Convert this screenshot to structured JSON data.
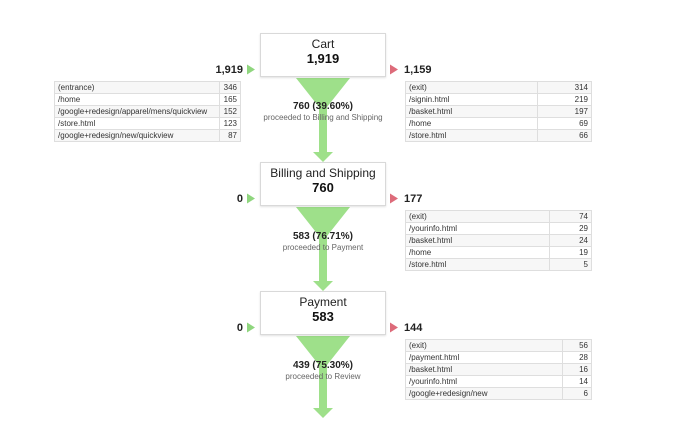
{
  "chart_data": {
    "type": "funnel",
    "steps": [
      {
        "name": "Cart",
        "count": "1,919",
        "entrances": "1,919",
        "exits": "1,159",
        "proceed_value": "760 (39.60%)",
        "proceed_label": "proceeded to Billing and Shipping",
        "entrance_rows": [
          {
            "page": "(entrance)",
            "value": "346"
          },
          {
            "page": "/home",
            "value": "165"
          },
          {
            "page": "/google+redesign/apparel/mens/quickview",
            "value": "152"
          },
          {
            "page": "/store.html",
            "value": "123"
          },
          {
            "page": "/google+redesign/new/quickview",
            "value": "87"
          }
        ],
        "exit_rows": [
          {
            "page": "(exit)",
            "value": "314"
          },
          {
            "page": "/signin.html",
            "value": "219"
          },
          {
            "page": "/basket.html",
            "value": "197"
          },
          {
            "page": "/home",
            "value": "69"
          },
          {
            "page": "/store.html",
            "value": "66"
          }
        ]
      },
      {
        "name": "Billing and Shipping",
        "count": "760",
        "entrances": "0",
        "exits": "177",
        "proceed_value": "583 (76.71%)",
        "proceed_label": "proceeded to Payment",
        "entrance_rows": [],
        "exit_rows": [
          {
            "page": "(exit)",
            "value": "74"
          },
          {
            "page": "/yourinfo.html",
            "value": "29"
          },
          {
            "page": "/basket.html",
            "value": "24"
          },
          {
            "page": "/home",
            "value": "19"
          },
          {
            "page": "/store.html",
            "value": "5"
          }
        ]
      },
      {
        "name": "Payment",
        "count": "583",
        "entrances": "0",
        "exits": "144",
        "proceed_value": "439 (75.30%)",
        "proceed_label": "proceeded to Review",
        "entrance_rows": [],
        "exit_rows": [
          {
            "page": "(exit)",
            "value": "56"
          },
          {
            "page": "/payment.html",
            "value": "28"
          },
          {
            "page": "/basket.html",
            "value": "16"
          },
          {
            "page": "/yourinfo.html",
            "value": "14"
          },
          {
            "page": "/google+redesign/new",
            "value": "6"
          }
        ]
      }
    ],
    "colors": {
      "proceed": "#9ee08a",
      "exit": "#e07a86",
      "entrance_arrow": "#8fd67e",
      "exit_arrow": "#dd6b7a"
    }
  }
}
